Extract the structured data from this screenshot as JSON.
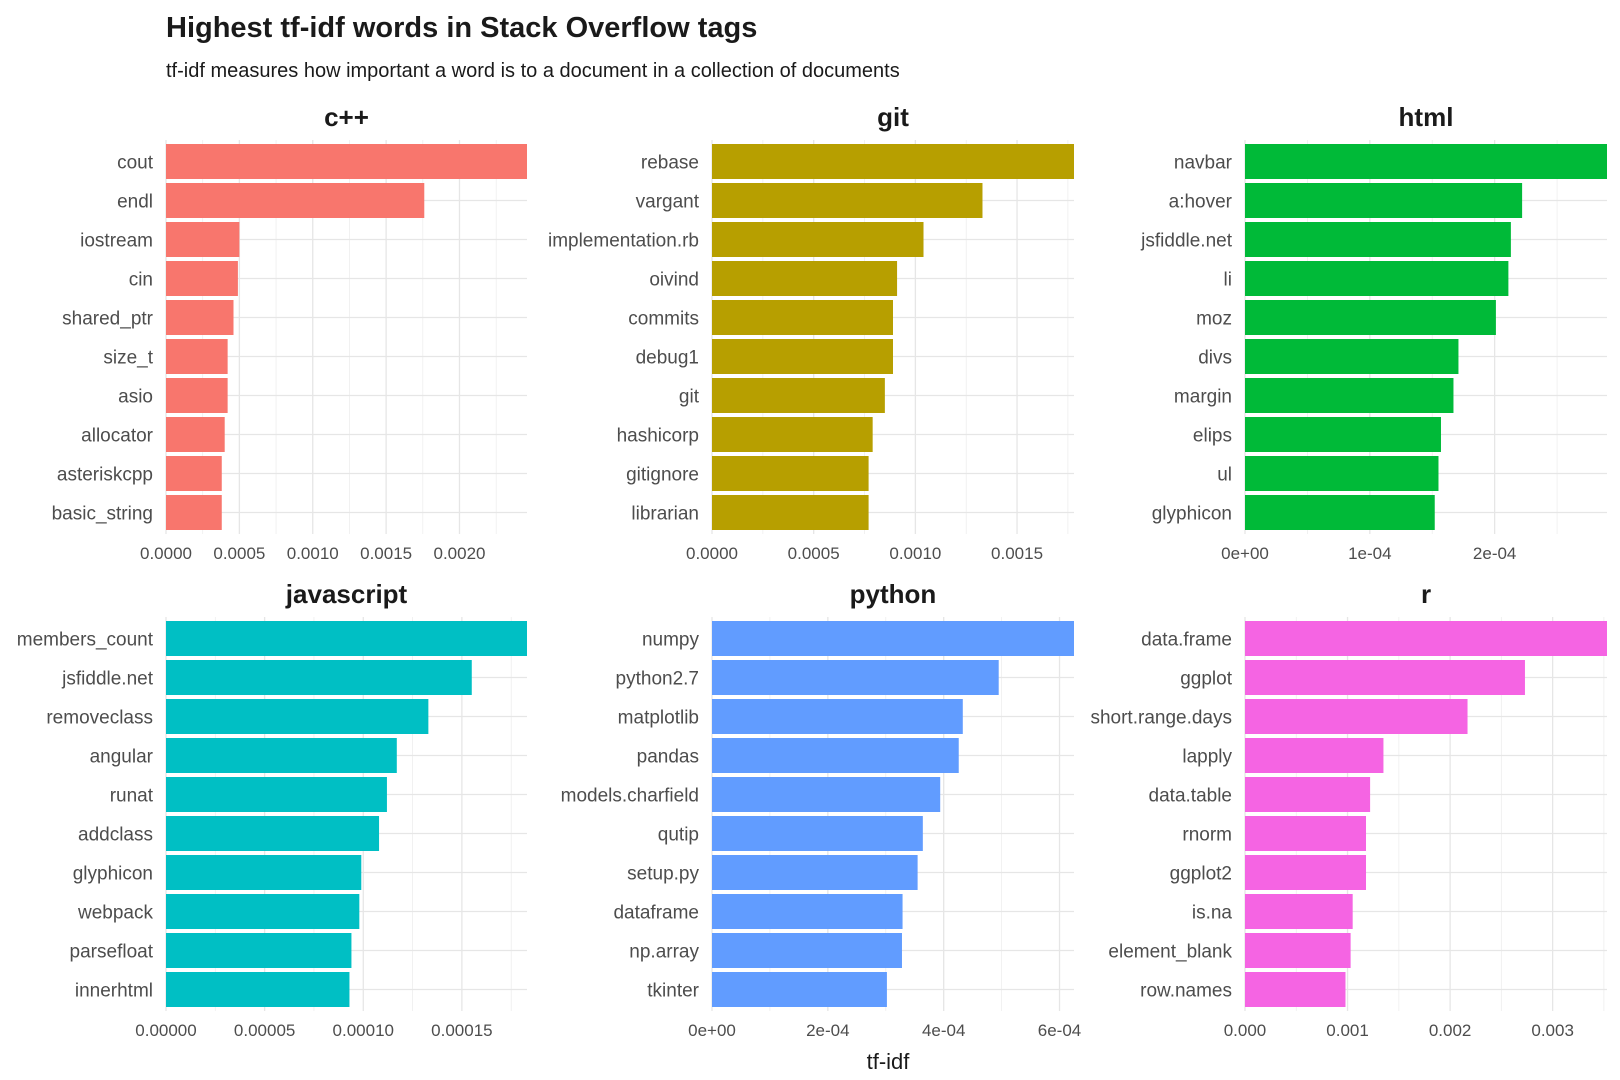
{
  "title": "Highest tf-idf words in Stack Overflow tags",
  "subtitle": "tf-idf measures how important a word is to a document in a collection of documents",
  "xlabel": "tf-idf",
  "chart_data": [
    {
      "type": "bar",
      "orientation": "horizontal",
      "facet": "c++",
      "color": "#F8766D",
      "categories": [
        "cout",
        "endl",
        "iostream",
        "cin",
        "shared_ptr",
        "size_t",
        "asio",
        "allocator",
        "asteriskcpp",
        "basic_string"
      ],
      "values": [
        0.00246,
        0.00176,
        0.0005,
        0.00049,
        0.00046,
        0.00042,
        0.00042,
        0.0004,
        0.00038,
        0.00038
      ],
      "xlim": [
        0,
        0.00246
      ],
      "ticks": [
        0,
        0.0005,
        0.001,
        0.0015,
        0.002
      ],
      "tick_labels": [
        "0.0000",
        "0.0005",
        "0.0010",
        "0.0015",
        "0.0020"
      ]
    },
    {
      "type": "bar",
      "orientation": "horizontal",
      "facet": "git",
      "color": "#B79F00",
      "categories": [
        "rebase",
        "vargant",
        "implementation.rb",
        "oivind",
        "commits",
        "debug1",
        "git",
        "hashicorp",
        "gitignore",
        "librarian"
      ],
      "values": [
        0.00178,
        0.00133,
        0.00104,
        0.00091,
        0.00089,
        0.00089,
        0.00085,
        0.00079,
        0.00077,
        0.00077
      ],
      "xlim": [
        0,
        0.00178
      ],
      "ticks": [
        0,
        0.0005,
        0.001,
        0.0015
      ],
      "tick_labels": [
        "0.0000",
        "0.0005",
        "0.0010",
        "0.0015"
      ]
    },
    {
      "type": "bar",
      "orientation": "horizontal",
      "facet": "html",
      "color": "#00BA38",
      "categories": [
        "navbar",
        "a:hover",
        "jsfiddle.net",
        "li",
        "moz",
        "divs",
        "margin",
        "elips",
        "ul",
        "glyphicon"
      ],
      "values": [
        0.00029,
        0.000222,
        0.000213,
        0.000211,
        0.000201,
        0.000171,
        0.000167,
        0.000157,
        0.000155,
        0.000152
      ],
      "xlim": [
        0,
        0.00029
      ],
      "ticks": [
        0,
        0.0001,
        0.0002
      ],
      "tick_labels": [
        "0e+00",
        "1e-04",
        "2e-04"
      ]
    },
    {
      "type": "bar",
      "orientation": "horizontal",
      "facet": "javascript",
      "color": "#00BFC4",
      "categories": [
        "members_count",
        "jsfiddle.net",
        "removeclass",
        "angular",
        "runat",
        "addclass",
        "glyphicon",
        "webpack",
        "parsefloat",
        "innerhtml"
      ],
      "values": [
        0.000183,
        0.000155,
        0.000133,
        0.000117,
        0.000112,
        0.000108,
        9.9e-05,
        9.8e-05,
        9.4e-05,
        9.3e-05
      ],
      "xlim": [
        0,
        0.000183
      ],
      "ticks": [
        0,
        5e-05,
        0.0001,
        0.00015
      ],
      "tick_labels": [
        "0.00000",
        "0.00005",
        "0.00010",
        "0.00015"
      ]
    },
    {
      "type": "bar",
      "orientation": "horizontal",
      "facet": "python",
      "color": "#619CFF",
      "categories": [
        "numpy",
        "python2.7",
        "matplotlib",
        "pandas",
        "models.charfield",
        "qutip",
        "setup.py",
        "dataframe",
        "np.array",
        "tkinter"
      ],
      "values": [
        0.000625,
        0.000495,
        0.000433,
        0.000426,
        0.000394,
        0.000364,
        0.000355,
        0.000329,
        0.000328,
        0.000302
      ],
      "xlim": [
        0,
        0.000625
      ],
      "ticks": [
        0,
        0.0002,
        0.0004,
        0.0006
      ],
      "tick_labels": [
        "0e+00",
        "2e-04",
        "4e-04",
        "6e-04"
      ]
    },
    {
      "type": "bar",
      "orientation": "horizontal",
      "facet": "r",
      "color": "#F564E3",
      "categories": [
        "data.frame",
        "ggplot",
        "short.range.days",
        "lapply",
        "data.table",
        "rnorm",
        "ggplot2",
        "is.na",
        "element_blank",
        "row.names"
      ],
      "values": [
        0.00353,
        0.00273,
        0.00217,
        0.00135,
        0.00122,
        0.00118,
        0.00118,
        0.00105,
        0.00103,
        0.00098
      ],
      "xlim": [
        0,
        0.00353
      ],
      "ticks": [
        0,
        0.001,
        0.002,
        0.003
      ],
      "tick_labels": [
        "0.000",
        "0.001",
        "0.002",
        "0.003"
      ]
    }
  ]
}
